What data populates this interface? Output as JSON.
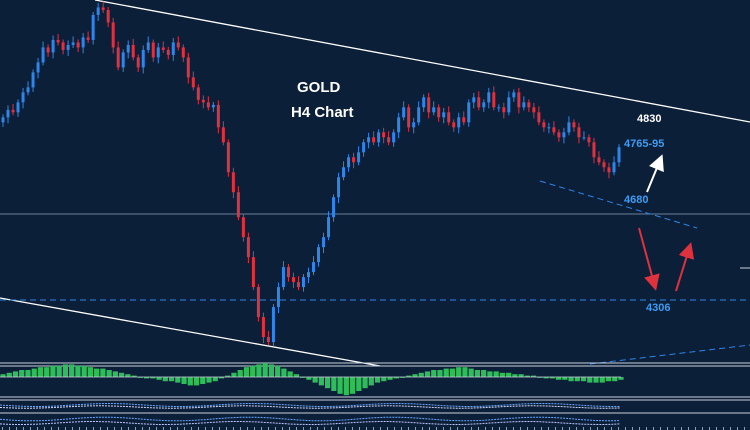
{
  "chart_data": {
    "type": "candlestick",
    "title": "GOLD",
    "subtitle": "H4 Chart",
    "price_range": [
      4250,
      4975
    ],
    "colors": {
      "background": "#0c1f38",
      "up_candle": "#2e86e8",
      "down_candle": "#e0313f",
      "channel_line": "#ffffff",
      "level_line": "#8aa0b8",
      "dashed_level": "#2e86e8",
      "label_white": "#ffffff",
      "label_blue": "#3c9cf5",
      "arrow_up": "#ffffff",
      "arrow_red": "#e0313f",
      "histogram": "#2ebd5a"
    },
    "levels": [
      {
        "label": "4830",
        "value": 4830,
        "label_color": "white"
      },
      {
        "label": "4765-95",
        "value": 4780,
        "label_color": "blue"
      },
      {
        "label": "4680",
        "value": 4680,
        "label_color": "blue",
        "line": "solid"
      },
      {
        "label": "4306",
        "value": 4306,
        "label_color": "blue",
        "line": "dashed"
      }
    ],
    "close_series": [
      4740,
      4755,
      4750,
      4770,
      4790,
      4800,
      4830,
      4850,
      4880,
      4870,
      4895,
      4890,
      4875,
      4885,
      4890,
      4880,
      4900,
      4895,
      4945,
      4960,
      4955,
      4930,
      4880,
      4840,
      4870,
      4885,
      4860,
      4840,
      4875,
      4890,
      4860,
      4880,
      4875,
      4865,
      4890,
      4880,
      4860,
      4820,
      4800,
      4775,
      4770,
      4760,
      4765,
      4720,
      4690,
      4630,
      4590,
      4540,
      4500,
      4460,
      4400,
      4340,
      4300,
      4290,
      4360,
      4400,
      4440,
      4420,
      4410,
      4400,
      4420,
      4430,
      4450,
      4480,
      4500,
      4540,
      4580,
      4620,
      4640,
      4660,
      4650,
      4670,
      4690,
      4700,
      4690,
      4710,
      4700,
      4690,
      4710,
      4740,
      4760,
      4720,
      4730,
      4760,
      4780,
      4750,
      4760,
      4740,
      4750,
      4730,
      4720,
      4740,
      4730,
      4770,
      4780,
      4760,
      4770,
      4790,
      4760,
      4760,
      4750,
      4780,
      4790,
      4760,
      4770,
      4760,
      4750,
      4730,
      4720,
      4720,
      4710,
      4700,
      4710,
      4730,
      4720,
      4700,
      4700,
      4690,
      4660,
      4650,
      4640,
      4630,
      4650,
      4680
    ]
  },
  "oscillator": {
    "values": [
      0.2,
      0.3,
      0.4,
      0.5,
      0.5,
      0.6,
      0.7,
      0.7,
      0.8,
      0.8,
      0.9,
      0.9,
      0.8,
      0.8,
      0.7,
      0.6,
      0.6,
      0.5,
      0.4,
      0.3,
      0.2,
      0.1,
      0.0,
      -0.1,
      -0.1,
      -0.2,
      -0.3,
      -0.3,
      -0.4,
      -0.5,
      -0.6,
      -0.6,
      -0.5,
      -0.4,
      -0.3,
      -0.1,
      0.1,
      0.3,
      0.5,
      0.7,
      0.8,
      0.9,
      1.0,
      0.9,
      0.8,
      0.6,
      0.4,
      0.2,
      0.0,
      -0.2,
      -0.4,
      -0.6,
      -0.8,
      -1.0,
      -1.2,
      -1.3,
      -1.2,
      -1.0,
      -0.8,
      -0.6,
      -0.4,
      -0.3,
      -0.2,
      -0.1,
      0.0,
      0.1,
      0.2,
      0.3,
      0.4,
      0.5,
      0.5,
      0.6,
      0.6,
      0.7,
      0.7,
      0.6,
      0.5,
      0.5,
      0.4,
      0.4,
      0.3,
      0.3,
      0.2,
      0.2,
      0.1,
      0.1,
      0.0,
      -0.1,
      -0.1,
      -0.2,
      -0.2,
      -0.3,
      -0.3,
      -0.3,
      -0.4,
      -0.4,
      -0.4,
      -0.3,
      -0.3,
      -0.2
    ]
  }
}
